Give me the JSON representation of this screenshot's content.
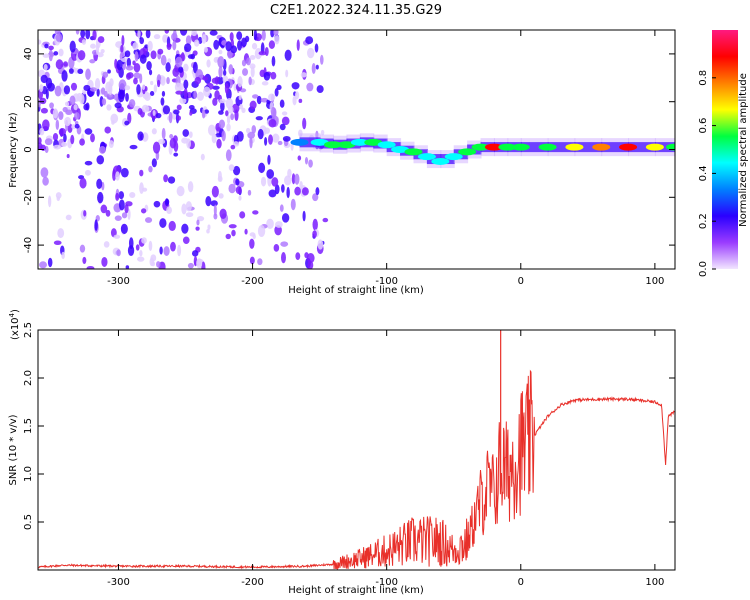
{
  "title": "C2E1.2022.324.11.35.G29",
  "chart_data": [
    {
      "type": "heatmap",
      "xlabel": "Height of straight line (km)",
      "ylabel": "Frequency (Hz)",
      "xlim": [
        -360,
        115
      ],
      "ylim": [
        -50,
        50
      ],
      "xticks": [
        -300,
        -200,
        -100,
        0,
        100
      ],
      "yticks": [
        -40,
        -20,
        0,
        20,
        40
      ],
      "colorbar": {
        "label": "Normalized spectral amplitude",
        "range": [
          0.0,
          1.0
        ],
        "ticks": [
          "0.0",
          "0.2",
          "0.4",
          "0.6",
          "0.8"
        ],
        "tick_values": [
          0.0,
          0.2,
          0.4,
          0.6,
          0.8
        ],
        "colors": [
          "#f2e6ff",
          "#9a3cff",
          "#2a00ff",
          "#0080ff",
          "#00ffff",
          "#00ff40",
          "#ffff00",
          "#ff8000",
          "#ff0000",
          "#ff1a80"
        ]
      },
      "signal_track": [
        {
          "x": -165,
          "y": 3,
          "amp": 0.35
        },
        {
          "x": -150,
          "y": 3,
          "amp": 0.45
        },
        {
          "x": -140,
          "y": 2,
          "amp": 0.5
        },
        {
          "x": -130,
          "y": 2,
          "amp": 0.5
        },
        {
          "x": -120,
          "y": 3,
          "amp": 0.45
        },
        {
          "x": -110,
          "y": 3,
          "amp": 0.5
        },
        {
          "x": -100,
          "y": 2,
          "amp": 0.45
        },
        {
          "x": -90,
          "y": 0,
          "amp": 0.45
        },
        {
          "x": -80,
          "y": -1,
          "amp": 0.5
        },
        {
          "x": -70,
          "y": -3,
          "amp": 0.45
        },
        {
          "x": -60,
          "y": -5,
          "amp": 0.4
        },
        {
          "x": -50,
          "y": -3,
          "amp": 0.45
        },
        {
          "x": -40,
          "y": -1,
          "amp": 0.5
        },
        {
          "x": -30,
          "y": 1,
          "amp": 0.55
        },
        {
          "x": -20,
          "y": 1,
          "amp": 0.85
        },
        {
          "x": -10,
          "y": 1,
          "amp": 0.6
        },
        {
          "x": 0,
          "y": 1,
          "amp": 0.5
        },
        {
          "x": 20,
          "y": 1,
          "amp": 0.55
        },
        {
          "x": 40,
          "y": 1,
          "amp": 0.65
        },
        {
          "x": 60,
          "y": 1,
          "amp": 0.75
        },
        {
          "x": 80,
          "y": 1,
          "amp": 0.85
        },
        {
          "x": 100,
          "y": 1,
          "amp": 0.7
        },
        {
          "x": 115,
          "y": 1,
          "amp": 0.55
        }
      ]
    },
    {
      "type": "line",
      "xlabel": "Height of straight line (km)",
      "ylabel": "SNR (10 * v/v)",
      "yscale_label": "(x10",
      "yscale_exp": "4",
      "yscale_close": ")",
      "xlim": [
        -360,
        115
      ],
      "ylim": [
        0,
        2.5
      ],
      "xticks": [
        -300,
        -200,
        -100,
        0,
        100
      ],
      "yticks": [
        0.5,
        1.0,
        1.5,
        2.0,
        2.5
      ],
      "color": "#e8302a",
      "x": [
        -360,
        -340,
        -300,
        -250,
        -200,
        -160,
        -140,
        -120,
        -100,
        -80,
        -60,
        -50,
        -40,
        -30,
        -25,
        -20,
        -15,
        -10,
        -5,
        0,
        5,
        10,
        20,
        30,
        40,
        60,
        80,
        100,
        105,
        108,
        110,
        112,
        115
      ],
      "y": [
        0.03,
        0.05,
        0.04,
        0.04,
        0.03,
        0.04,
        0.06,
        0.12,
        0.2,
        0.3,
        0.3,
        0.2,
        0.3,
        0.7,
        0.85,
        0.8,
        1.1,
        1.0,
        1.15,
        1.25,
        1.3,
        1.4,
        1.6,
        1.72,
        1.77,
        1.78,
        1.78,
        1.75,
        1.72,
        1.1,
        1.6,
        1.62,
        1.65
      ],
      "spike": {
        "x": -15,
        "y": 2.5
      }
    }
  ]
}
